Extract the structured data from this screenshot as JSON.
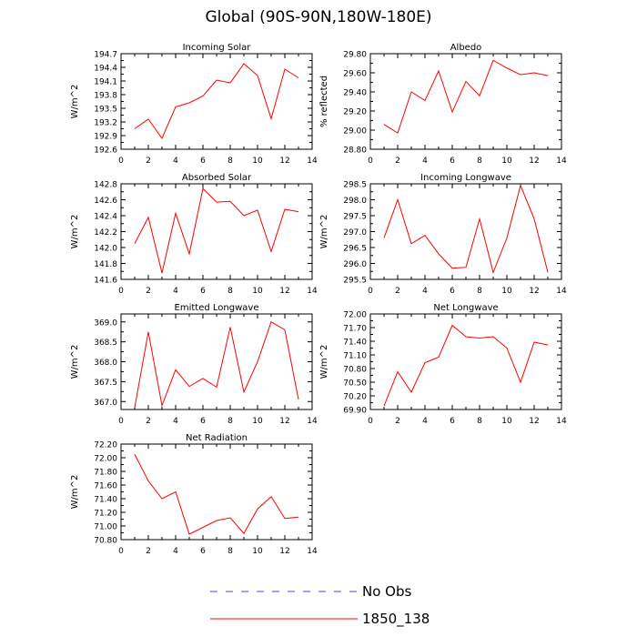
{
  "figure": {
    "title": "Global (90S-90N,180W-180E)",
    "legend": [
      {
        "label": "No Obs",
        "color": "#4a4ad0",
        "style": "dashed"
      },
      {
        "label": "1850_138",
        "color": "#ff0000",
        "style": "solid"
      }
    ]
  },
  "chart_data": [
    {
      "type": "line",
      "title": "Incoming Solar",
      "xlabel": "",
      "ylabel": "W/m^2",
      "xlim": [
        0,
        14
      ],
      "ylim": [
        192.6,
        194.7
      ],
      "xticks": [
        0,
        2,
        4,
        6,
        8,
        10,
        12,
        14
      ],
      "yticks": [
        192.6,
        192.9,
        193.2,
        193.5,
        193.8,
        194.1,
        194.4,
        194.7
      ],
      "ytick_labels": [
        "192.6",
        "192.9",
        "193.2",
        "193.5",
        "193.8",
        "194.1",
        "194.4",
        "194.7"
      ],
      "series": [
        {
          "name": "1850_138",
          "color": "#ff0000",
          "x": [
            1,
            2,
            3,
            4,
            5,
            6,
            7,
            8,
            9,
            10,
            11,
            12,
            13
          ],
          "y": [
            193.05,
            193.26,
            192.84,
            193.53,
            193.62,
            193.77,
            194.12,
            194.06,
            194.48,
            194.22,
            193.27,
            194.36,
            194.17
          ]
        }
      ]
    },
    {
      "type": "line",
      "title": "Albedo",
      "xlabel": "",
      "ylabel": "% reflected",
      "xlim": [
        0,
        14
      ],
      "ylim": [
        28.8,
        29.8
      ],
      "xticks": [
        0,
        2,
        4,
        6,
        8,
        10,
        12,
        14
      ],
      "yticks": [
        28.8,
        29.0,
        29.2,
        29.4,
        29.6,
        29.8
      ],
      "ytick_labels": [
        "28.80",
        "29.00",
        "29.20",
        "29.40",
        "29.60",
        "29.80"
      ],
      "series": [
        {
          "name": "1850_138",
          "color": "#ff0000",
          "x": [
            1,
            2,
            3,
            4,
            5,
            6,
            7,
            8,
            9,
            10,
            11,
            12,
            13
          ],
          "y": [
            29.06,
            28.97,
            29.4,
            29.31,
            29.62,
            29.19,
            29.51,
            29.36,
            29.73,
            29.65,
            29.58,
            29.6,
            29.57
          ]
        }
      ]
    },
    {
      "type": "line",
      "title": "Absorbed Solar",
      "xlabel": "",
      "ylabel": "W/m^2",
      "xlim": [
        0,
        14
      ],
      "ylim": [
        141.6,
        142.8
      ],
      "xticks": [
        0,
        2,
        4,
        6,
        8,
        10,
        12,
        14
      ],
      "yticks": [
        141.6,
        141.8,
        142.0,
        142.2,
        142.4,
        142.6,
        142.8
      ],
      "ytick_labels": [
        "141.6",
        "141.8",
        "142.0",
        "142.2",
        "142.4",
        "142.6",
        "142.8"
      ],
      "series": [
        {
          "name": "1850_138",
          "color": "#ff0000",
          "x": [
            1,
            2,
            3,
            4,
            5,
            6,
            7,
            8,
            9,
            10,
            11,
            12,
            13
          ],
          "y": [
            142.05,
            142.38,
            141.68,
            142.43,
            141.92,
            142.74,
            142.57,
            142.58,
            142.4,
            142.47,
            141.95,
            142.48,
            142.45
          ]
        }
      ]
    },
    {
      "type": "line",
      "title": "Incoming Longwave",
      "xlabel": "",
      "ylabel": "W/m^2",
      "xlim": [
        0,
        14
      ],
      "ylim": [
        295.5,
        298.5
      ],
      "xticks": [
        0,
        2,
        4,
        6,
        8,
        10,
        12,
        14
      ],
      "yticks": [
        295.5,
        296.0,
        296.5,
        297.0,
        297.5,
        298.0,
        298.5
      ],
      "ytick_labels": [
        "295.5",
        "296.0",
        "296.5",
        "297.0",
        "297.5",
        "298.0",
        "298.5"
      ],
      "series": [
        {
          "name": "1850_138",
          "color": "#ff0000",
          "x": [
            1,
            2,
            3,
            4,
            5,
            6,
            7,
            8,
            9,
            10,
            11,
            12,
            13
          ],
          "y": [
            296.8,
            298.0,
            296.62,
            296.88,
            296.3,
            295.85,
            295.88,
            297.4,
            295.72,
            296.8,
            298.45,
            297.4,
            295.72
          ]
        }
      ]
    },
    {
      "type": "line",
      "title": "Emitted Longwave",
      "xlabel": "",
      "ylabel": "W/m^2",
      "xlim": [
        0,
        14
      ],
      "ylim": [
        366.8,
        369.2
      ],
      "xticks": [
        0,
        2,
        4,
        6,
        8,
        10,
        12,
        14
      ],
      "yticks": [
        367.0,
        367.5,
        368.0,
        368.5,
        369.0
      ],
      "ytick_labels": [
        "367.0",
        "367.5",
        "368.0",
        "368.5",
        "369.0"
      ],
      "series": [
        {
          "name": "1850_138",
          "color": "#ff0000",
          "x": [
            1,
            2,
            3,
            4,
            5,
            6,
            7,
            8,
            9,
            10,
            11,
            12,
            13
          ],
          "y": [
            366.85,
            368.75,
            366.9,
            367.8,
            367.38,
            367.58,
            367.36,
            368.87,
            367.24,
            368.0,
            369.0,
            368.8,
            367.05
          ]
        }
      ]
    },
    {
      "type": "line",
      "title": "Net Longwave",
      "xlabel": "",
      "ylabel": "W/m^2",
      "xlim": [
        0,
        14
      ],
      "ylim": [
        69.9,
        72.0
      ],
      "xticks": [
        0,
        2,
        4,
        6,
        8,
        10,
        12,
        14
      ],
      "yticks": [
        69.9,
        70.2,
        70.5,
        70.8,
        71.1,
        71.4,
        71.7,
        72.0
      ],
      "ytick_labels": [
        "69.90",
        "70.20",
        "70.50",
        "70.80",
        "71.10",
        "71.40",
        "71.70",
        "72.00"
      ],
      "series": [
        {
          "name": "1850_138",
          "color": "#ff0000",
          "x": [
            1,
            2,
            3,
            4,
            5,
            6,
            7,
            8,
            9,
            10,
            11,
            12,
            13
          ],
          "y": [
            69.98,
            70.73,
            70.28,
            70.93,
            71.05,
            71.75,
            71.5,
            71.47,
            71.5,
            71.25,
            70.5,
            71.38,
            71.32
          ]
        }
      ]
    },
    {
      "type": "line",
      "title": "Net Radiation",
      "xlabel": "",
      "ylabel": "W/m^2",
      "xlim": [
        0,
        14
      ],
      "ylim": [
        70.8,
        72.2
      ],
      "xticks": [
        0,
        2,
        4,
        6,
        8,
        10,
        12,
        14
      ],
      "yticks": [
        70.8,
        71.0,
        71.2,
        71.4,
        71.6,
        71.8,
        72.0,
        72.2
      ],
      "ytick_labels": [
        "70.80",
        "71.00",
        "71.20",
        "71.40",
        "71.60",
        "71.80",
        "72.00",
        "72.20"
      ],
      "series": [
        {
          "name": "1850_138",
          "color": "#ff0000",
          "x": [
            1,
            2,
            3,
            4,
            5,
            6,
            7,
            8,
            9,
            10,
            11,
            12,
            13
          ],
          "y": [
            72.05,
            71.66,
            71.4,
            71.5,
            70.88,
            70.98,
            71.08,
            71.12,
            70.89,
            71.25,
            71.43,
            71.11,
            71.13
          ]
        }
      ]
    }
  ]
}
